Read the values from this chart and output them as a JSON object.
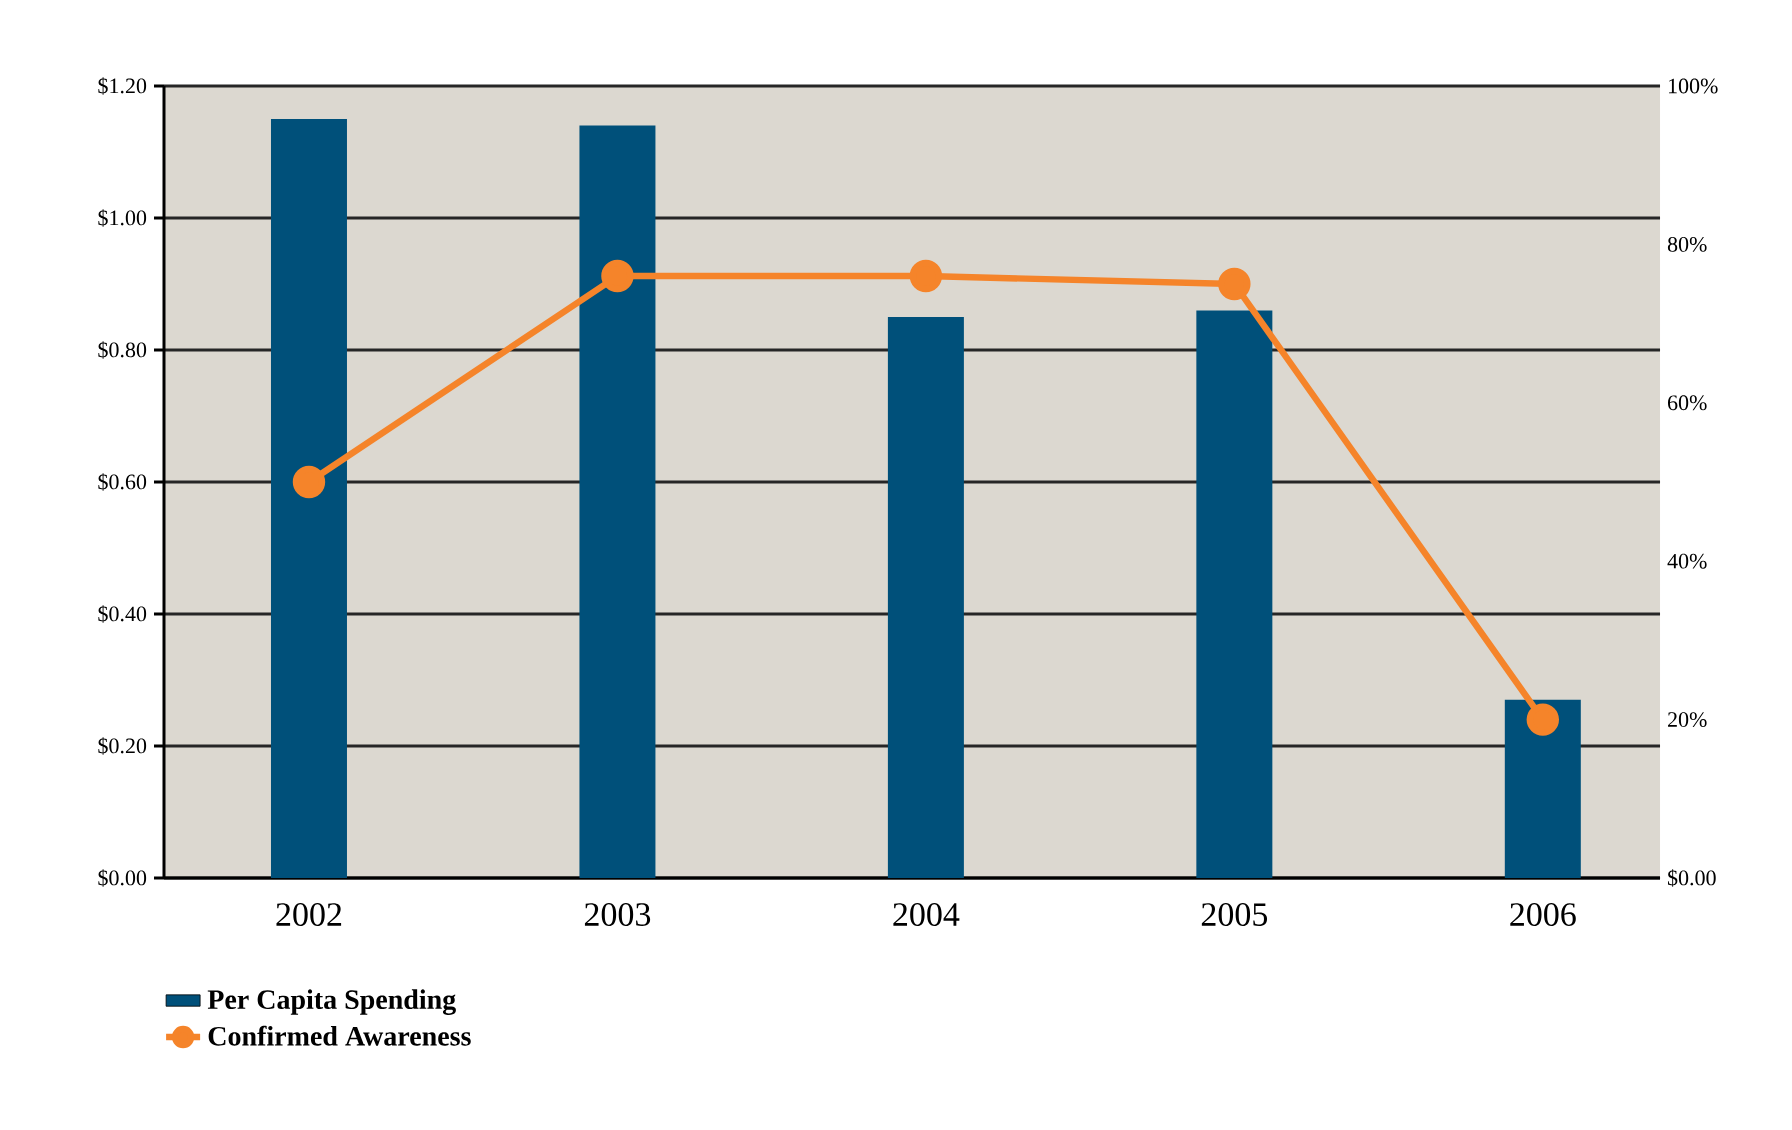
{
  "chart_data": {
    "type": "bar",
    "categories": [
      "2002",
      "2003",
      "2004",
      "2005",
      "2006"
    ],
    "series": [
      {
        "name": "Per Capita Spending",
        "color": "#00507a",
        "values": [
          1.15,
          1.14,
          0.85,
          0.86,
          0.27
        ]
      },
      {
        "name": "Confirmed Awareness",
        "type": "line",
        "axis": "y2",
        "color": "#f5842a",
        "values": [
          50,
          76,
          76,
          75,
          20
        ]
      }
    ],
    "ylim": [
      0,
      1.2
    ],
    "yticks": [
      {
        "value": 0,
        "label": "$0.00"
      },
      {
        "value": 0.2,
        "label": "$0.20"
      },
      {
        "value": 0.4,
        "label": "$0.40"
      },
      {
        "value": 0.6,
        "label": "$0.60"
      },
      {
        "value": 0.8,
        "label": "$0.80"
      },
      {
        "value": 1.0,
        "label": "$1.00"
      },
      {
        "value": 1.2,
        "label": "$1.20"
      }
    ],
    "y2lim": [
      0,
      100
    ],
    "y2ticks": [
      {
        "value": 0,
        "label": "$0.00"
      },
      {
        "value": 20,
        "label": "20%"
      },
      {
        "value": 40,
        "label": "40%"
      },
      {
        "value": 60,
        "label": "60%"
      },
      {
        "value": 80,
        "label": "80%"
      },
      {
        "value": 100,
        "label": "100%"
      }
    ],
    "grid": "y",
    "legend": "bottom left",
    "marker": "circle",
    "line_style": "solid"
  }
}
